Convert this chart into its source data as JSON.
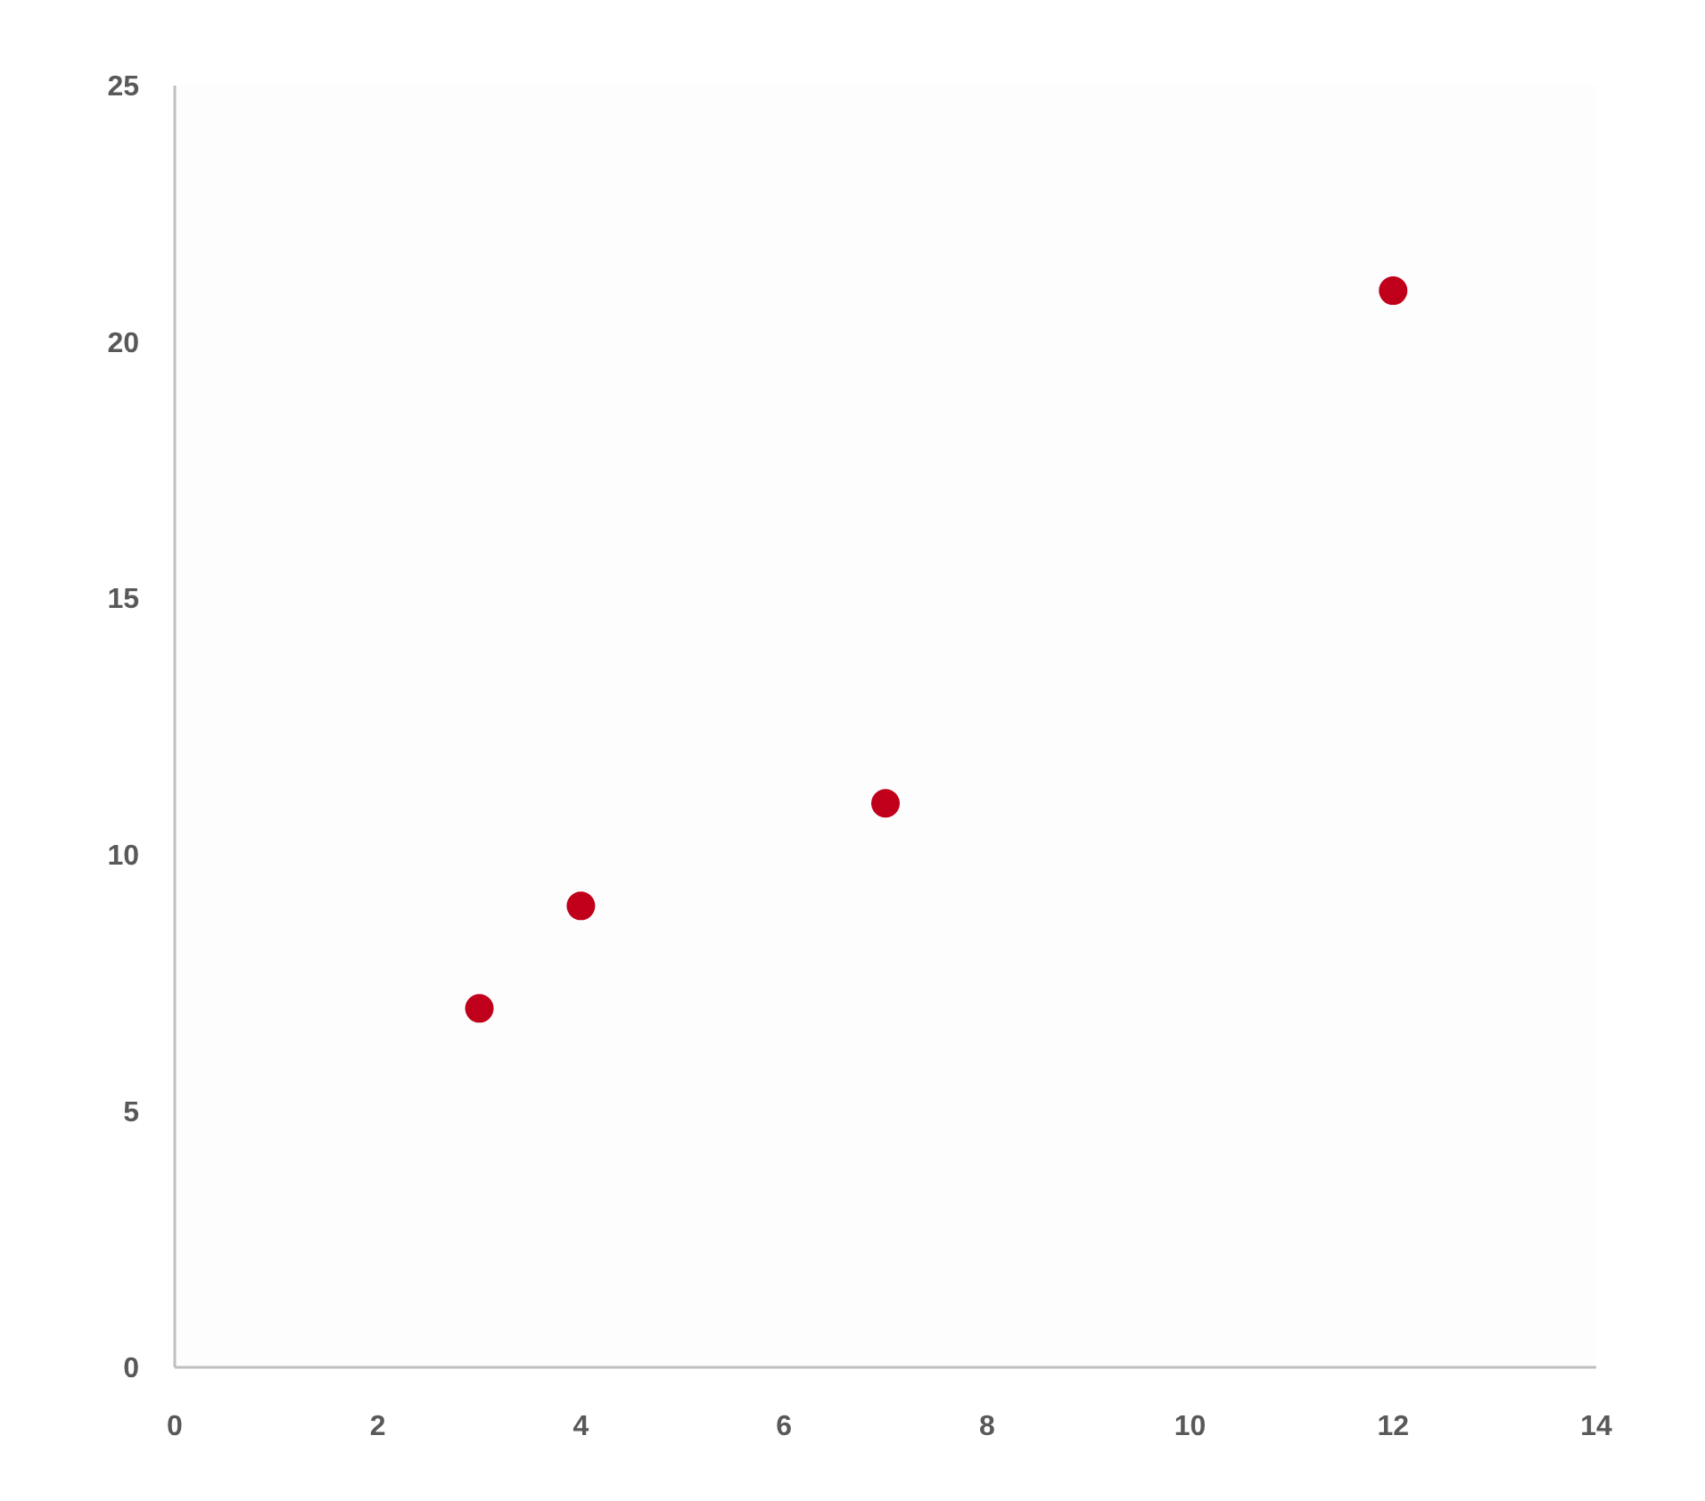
{
  "chart_data": {
    "type": "scatter",
    "x": [
      3,
      4,
      7,
      12
    ],
    "values": [
      7,
      9,
      11,
      21
    ],
    "color": "#c0001a",
    "marker": "circle",
    "xlim": [
      0,
      14
    ],
    "xticks": [
      0,
      2,
      4,
      6,
      8,
      10,
      12,
      14
    ],
    "ylim": [
      0,
      25
    ],
    "yticks": [
      0,
      5,
      10,
      15,
      20,
      25
    ]
  }
}
